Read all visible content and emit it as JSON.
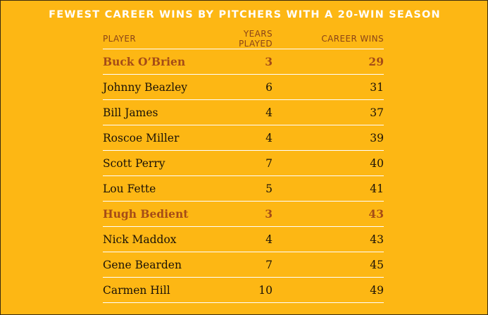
{
  "chart_data": {
    "type": "table",
    "title": "FEWEST CAREER WINS BY PITCHERS WITH A 20-WIN SEASON",
    "columns": [
      "PLAYER",
      "YEARS PLAYED",
      "CAREER WINS"
    ],
    "highlight_color": "#a54c17",
    "rows": [
      {
        "player": "Buck O’Brien",
        "years": "3",
        "wins": "29",
        "highlight": true
      },
      {
        "player": "Johnny Beazley",
        "years": "6",
        "wins": "31",
        "highlight": false
      },
      {
        "player": "Bill James",
        "years": "4",
        "wins": "37",
        "highlight": false
      },
      {
        "player": "Roscoe Miller",
        "years": "4",
        "wins": "39",
        "highlight": false
      },
      {
        "player": "Scott Perry",
        "years": "7",
        "wins": "40",
        "highlight": false
      },
      {
        "player": "Lou Fette",
        "years": "5",
        "wins": "41",
        "highlight": false
      },
      {
        "player": "Hugh Bedient",
        "years": "3",
        "wins": "43",
        "highlight": true
      },
      {
        "player": "Nick Maddox",
        "years": "4",
        "wins": "43",
        "highlight": false
      },
      {
        "player": "Gene Bearden",
        "years": "7",
        "wins": "45",
        "highlight": false
      },
      {
        "player": "Carmen Hill",
        "years": "10",
        "wins": "49",
        "highlight": false
      }
    ]
  }
}
